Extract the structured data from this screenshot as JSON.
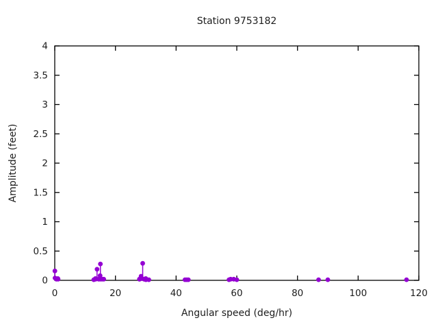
{
  "window": {
    "background_color": "#ffffff",
    "text_color": "#1c1c1c"
  },
  "chart_data": {
    "type": "scatter",
    "style": "impulses-with-filled-circle-points",
    "title": "Station 9753182",
    "xlabel": "Angular speed (deg/hr)",
    "ylabel": "Amplitude (feet)",
    "xlim": [
      0,
      120
    ],
    "ylim": [
      0,
      4
    ],
    "x_ticks": [
      0,
      20,
      40,
      60,
      80,
      100,
      120
    ],
    "x_tick_labels": [
      "0",
      "20",
      "40",
      "60",
      "80",
      "100",
      "120"
    ],
    "y_ticks": [
      0,
      0.5,
      1,
      1.5,
      2,
      2.5,
      3,
      3.5,
      4
    ],
    "y_tick_labels": [
      "0",
      "0.5",
      "1",
      "1.5",
      "2",
      "2.5",
      "3",
      "3.5",
      "4"
    ],
    "grid": false,
    "legend_position": "none",
    "tick_style": "inside-mirrored",
    "point_color": "#9400d3",
    "axis_color": "#000000",
    "points": [
      [
        0.04,
        0.16
      ],
      [
        0.08,
        0.04
      ],
      [
        0.54,
        0.02
      ],
      [
        1.02,
        0.03
      ],
      [
        1.1,
        0.02
      ],
      [
        12.85,
        0.01
      ],
      [
        13.4,
        0.03
      ],
      [
        13.47,
        0.02
      ],
      [
        13.94,
        0.19
      ],
      [
        14.49,
        0.02
      ],
      [
        14.96,
        0.08
      ],
      [
        15.0,
        0.02
      ],
      [
        15.04,
        0.28
      ],
      [
        15.59,
        0.02
      ],
      [
        16.14,
        0.02
      ],
      [
        27.9,
        0.02
      ],
      [
        27.97,
        0.02
      ],
      [
        28.44,
        0.07
      ],
      [
        28.51,
        0.03
      ],
      [
        28.98,
        0.29
      ],
      [
        29.46,
        0.02
      ],
      [
        29.53,
        0.02
      ],
      [
        29.96,
        0.02
      ],
      [
        30.0,
        0.03
      ],
      [
        30.04,
        0.01
      ],
      [
        30.08,
        0.02
      ],
      [
        31.02,
        0.01
      ],
      [
        42.93,
        0.01
      ],
      [
        43.48,
        0.01
      ],
      [
        44.03,
        0.01
      ],
      [
        57.42,
        0.01
      ],
      [
        57.97,
        0.02
      ],
      [
        58.98,
        0.02
      ],
      [
        60.0,
        0.01
      ],
      [
        86.95,
        0.01
      ],
      [
        90.0,
        0.01
      ],
      [
        115.94,
        0.01
      ]
    ]
  }
}
